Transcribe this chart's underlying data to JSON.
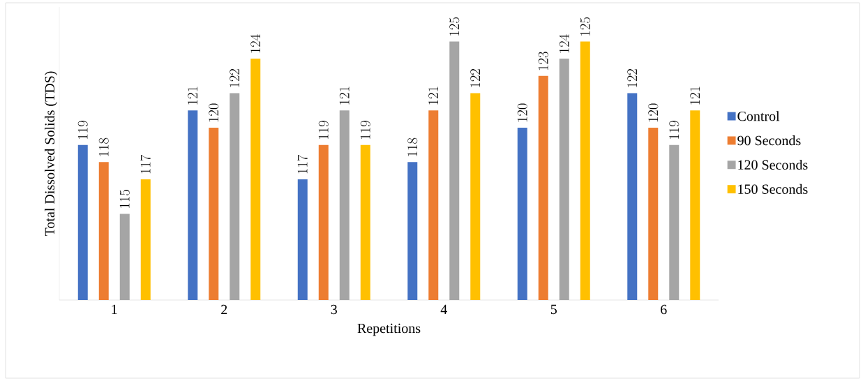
{
  "chart_data": {
    "type": "bar",
    "xlabel": "Repetitions",
    "ylabel": "Total Dissolved Solids (TDS)",
    "categories": [
      "1",
      "2",
      "3",
      "4",
      "5",
      "6"
    ],
    "series": [
      {
        "name": "Control",
        "color": "#4472c4",
        "values": [
          119,
          121,
          117,
          118,
          120,
          122
        ]
      },
      {
        "name": "90 Seconds",
        "color": "#ed7d31",
        "values": [
          118,
          120,
          119,
          121,
          123,
          120
        ]
      },
      {
        "name": "120 Seconds",
        "color": "#a5a5a5",
        "values": [
          115,
          122,
          121,
          125,
          124,
          119
        ]
      },
      {
        "name": "150 Seconds",
        "color": "#ffc000",
        "values": [
          117,
          124,
          119,
          122,
          125,
          121
        ]
      }
    ],
    "ylim": [
      110,
      127
    ],
    "tick_labels": "x",
    "data_labels": true,
    "legend": "right",
    "grid": false
  }
}
